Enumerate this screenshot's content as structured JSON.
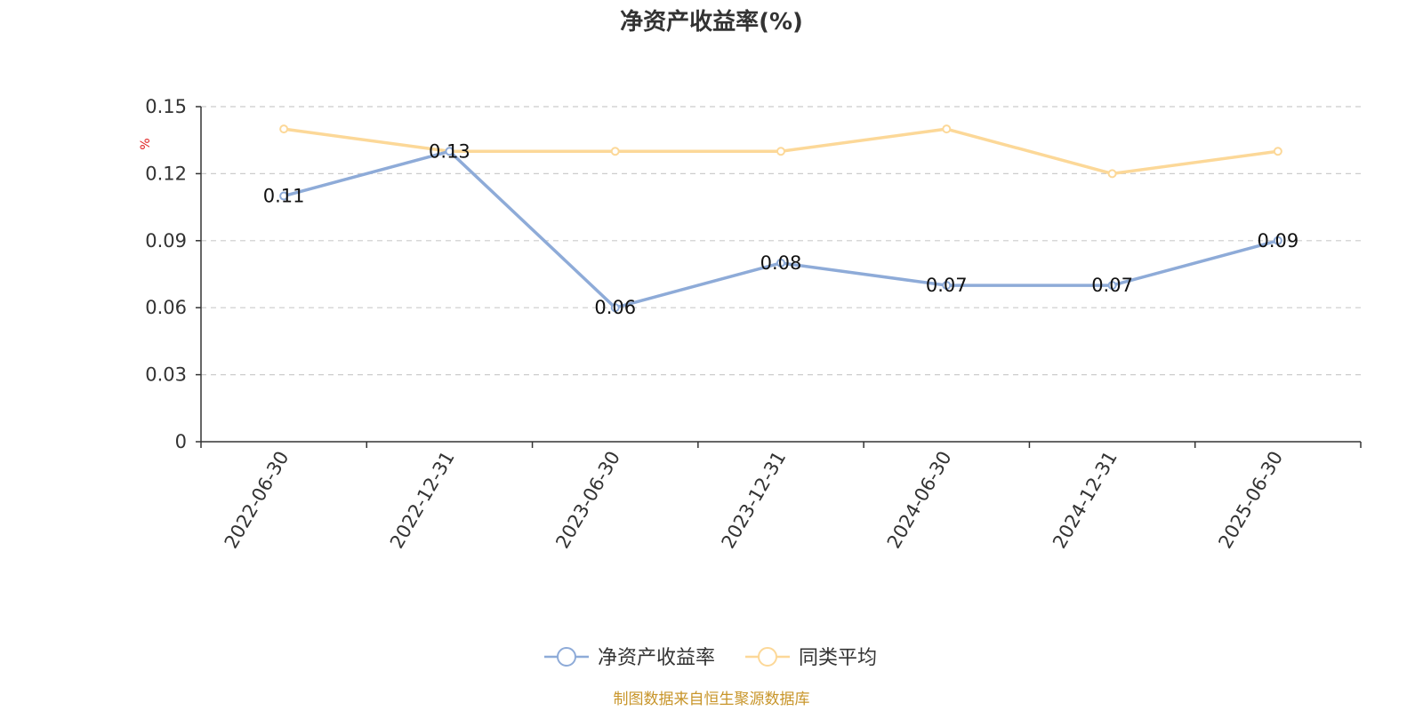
{
  "chart_data": {
    "type": "line",
    "title": "净资产收益率(%)",
    "unit_label": "%",
    "categories": [
      "2022-06-30",
      "2022-12-31",
      "2023-06-30",
      "2023-12-31",
      "2024-06-30",
      "2024-12-31",
      "2025-06-30"
    ],
    "series": [
      {
        "name": "净资产收益率",
        "color": "#8eabd8",
        "values": [
          0.11,
          0.13,
          0.06,
          0.08,
          0.07,
          0.07,
          0.09
        ],
        "show_labels": true
      },
      {
        "name": "同类平均",
        "color": "#fcd898",
        "values": [
          0.14,
          0.13,
          0.13,
          0.13,
          0.14,
          0.12,
          0.13
        ],
        "show_labels": false
      }
    ],
    "ylim": [
      0,
      0.15
    ],
    "yticks": [
      "0",
      "0.03",
      "0.06",
      "0.09",
      "0.12",
      "0.15"
    ],
    "grid": true,
    "legend_position": "bottom-center",
    "source": "制图数据来自恒生聚源数据库"
  }
}
